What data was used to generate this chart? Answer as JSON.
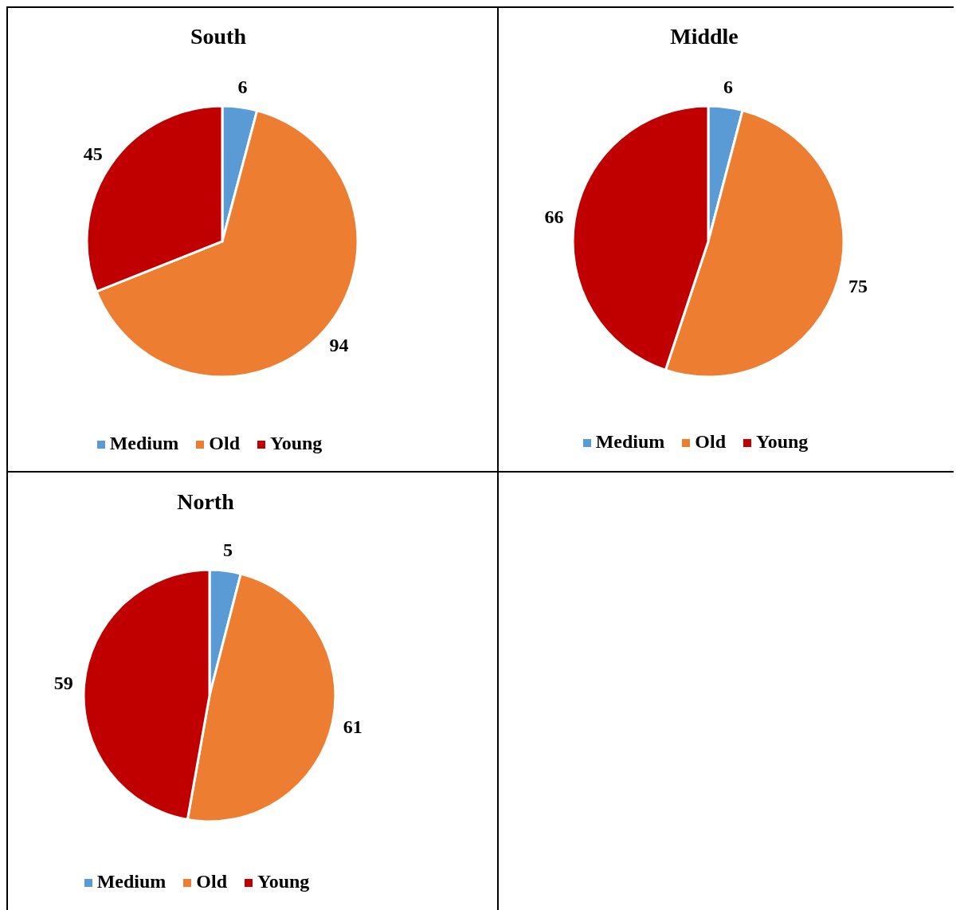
{
  "chart_data": [
    {
      "type": "pie",
      "title": "South",
      "categories": [
        "Medium",
        "Old",
        "Young"
      ],
      "values": [
        6,
        94,
        45
      ],
      "colors": [
        "#5b9bd5",
        "#ed7d31",
        "#c00000"
      ],
      "data_labels": true,
      "legend": "bottom"
    },
    {
      "type": "pie",
      "title": "Middle",
      "categories": [
        "Medium",
        "Old",
        "Young"
      ],
      "values": [
        6,
        75,
        66
      ],
      "colors": [
        "#5b9bd5",
        "#ed7d31",
        "#c00000"
      ],
      "data_labels": true,
      "legend": "bottom"
    },
    {
      "type": "pie",
      "title": "North",
      "categories": [
        "Medium",
        "Old",
        "Young"
      ],
      "values": [
        5,
        61,
        59
      ],
      "colors": [
        "#5b9bd5",
        "#ed7d31",
        "#c00000"
      ],
      "data_labels": true,
      "legend": "bottom"
    }
  ]
}
